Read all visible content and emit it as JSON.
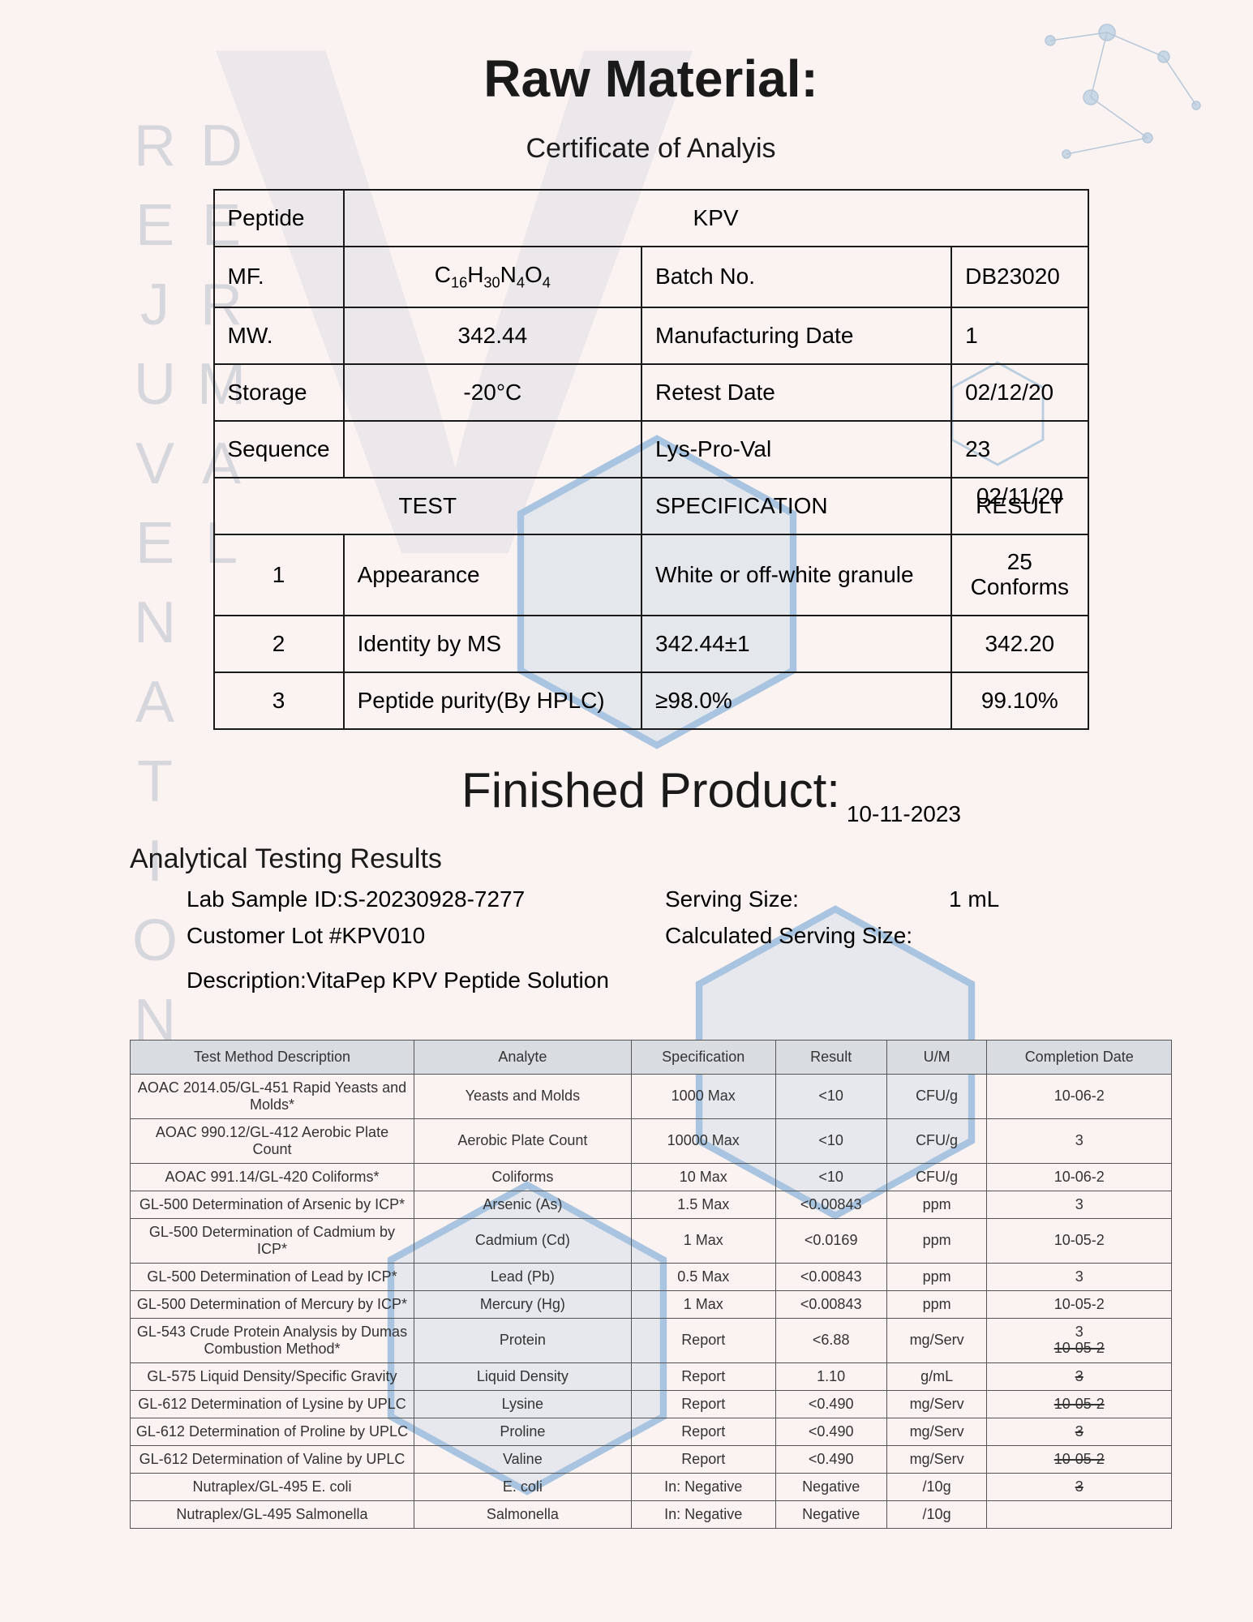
{
  "watermark_vertical": "DERMAL REJUVENATION",
  "header": {
    "title": "Raw Material:",
    "subtitle": "Certificate of Analyis"
  },
  "coa": {
    "rows": {
      "peptide_label": "Peptide",
      "peptide_value": "KPV",
      "mf_label": "MF.",
      "mf_value_html": "C16H30N4O4",
      "batch_label": "Batch No.",
      "batch_value": "DB23020",
      "mw_label": "MW.",
      "mw_value": "342.44",
      "mfg_label": "Manufacturing Date",
      "mfg_value": "1",
      "storage_label": "Storage",
      "storage_value": "-20°C",
      "retest_label": "Retest Date",
      "retest_value": "02/12/20",
      "seq_label": "Sequence",
      "seq_mid": "",
      "seq_val_label": "Lys-Pro-Val",
      "seq_val": "23"
    },
    "header": {
      "test": "TEST",
      "spec": "SPECIFICATION",
      "result_overlap": "02/11/20",
      "result": "RESULT"
    },
    "tests": [
      {
        "n": "1",
        "name": "Appearance",
        "spec": "White or off-white granule",
        "res_top": "25",
        "res": "Conforms"
      },
      {
        "n": "2",
        "name": "Identity by MS",
        "spec": "342.44±1",
        "res_top": "",
        "res": "342.20"
      },
      {
        "n": "3",
        "name": "Peptide purity(By HPLC)",
        "spec": "≥98.0%",
        "res_top": "",
        "res": "99.10%"
      }
    ]
  },
  "finished": {
    "title": "Finished Product:",
    "date": "10-11-2023",
    "atr": "Analytical Testing Results",
    "meta": {
      "lab_id_label": "Lab Sample ID:",
      "lab_id": "S-20230928-7277",
      "cust_lot_label": "Customer Lot #",
      "cust_lot": "KPV010",
      "serving_label": "Serving Size:",
      "serving": "1 mL",
      "calc_label": "Calculated Serving Size:",
      "calc": "",
      "desc_label": "Description:",
      "desc": "VitaPep KPV Peptide Solution"
    }
  },
  "results": {
    "columns": [
      "Test Method Description",
      "Analyte",
      "Specification",
      "Result",
      "U/M",
      "Completion Date"
    ],
    "rows": [
      {
        "m": "AOAC 2014.05/GL-451 Rapid Yeasts and Molds*",
        "a": "Yeasts and Molds",
        "s": "1000 Max",
        "r": "<10",
        "u": "CFU/g",
        "d": "10-06-2"
      },
      {
        "m": "AOAC 990.12/GL-412 Aerobic Plate Count",
        "a": "Aerobic Plate Count",
        "s": "10000 Max",
        "r": "<10",
        "u": "CFU/g",
        "d": "3"
      },
      {
        "m": "AOAC 991.14/GL-420 Coliforms*",
        "a": "Coliforms",
        "s": "10 Max",
        "r": "<10",
        "u": "CFU/g",
        "d": "10-06-2"
      },
      {
        "m": "GL-500 Determination of Arsenic by ICP*",
        "a": "Arsenic (As)",
        "s": "1.5 Max",
        "r": "<0.00843",
        "u": "ppm",
        "d": "3"
      },
      {
        "m": "GL-500 Determination of Cadmium by ICP*",
        "a": "Cadmium (Cd)",
        "s": "1 Max",
        "r": "<0.0169",
        "u": "ppm",
        "d": "10-05-2"
      },
      {
        "m": "GL-500 Determination of Lead by ICP*",
        "a": "Lead (Pb)",
        "s": "0.5 Max",
        "r": "<0.00843",
        "u": "ppm",
        "d": "3"
      },
      {
        "m": "GL-500 Determination of Mercury by ICP*",
        "a": "Mercury (Hg)",
        "s": "1 Max",
        "r": "<0.00843",
        "u": "ppm",
        "d": "10-05-2"
      },
      {
        "m": "GL-543 Crude Protein Analysis by Dumas Combustion Method*",
        "a": "Protein",
        "s": "Report",
        "r": "<6.88",
        "u": "mg/Serv",
        "d": "3",
        "d2": "10-05-2",
        "strike_d2": true
      },
      {
        "m": "GL-575 Liquid Density/Specific Gravity",
        "a": "Liquid Density",
        "s": "Report",
        "r": "1.10",
        "u": "g/mL",
        "d": "3",
        "strike_d": true
      },
      {
        "m": "GL-612 Determination of Lysine by UPLC",
        "a": "Lysine",
        "s": "Report",
        "r": "<0.490",
        "u": "mg/Serv",
        "d": "10-05-2",
        "strike_d": true
      },
      {
        "m": "GL-612 Determination of Proline by UPLC",
        "a": "Proline",
        "s": "Report",
        "r": "<0.490",
        "u": "mg/Serv",
        "d": "3",
        "strike_d": true
      },
      {
        "m": "GL-612 Determination of Valine by UPLC",
        "a": "Valine",
        "s": "Report",
        "r": "<0.490",
        "u": "mg/Serv",
        "d": "10-05-2",
        "strike_d": true
      },
      {
        "m": "Nutraplex/GL-495 E. coli",
        "a": "E. coli",
        "s": "In: Negative",
        "r": "Negative",
        "u": "/10g",
        "d": "3",
        "strike_d": true
      },
      {
        "m": "Nutraplex/GL-495 Salmonella",
        "a": "Salmonella",
        "s": "In: Negative",
        "r": "Negative",
        "u": "/10g",
        "d": ""
      }
    ]
  },
  "styling": {
    "page_bg": "#fbf3f1",
    "border_color": "#1a1a1a",
    "results_header_bg": "#d9dde2",
    "watermark_color": "rgba(120,140,170,0.28)",
    "hex_stroke": "#a8c4e0",
    "hex_fill": "rgba(160,195,225,0.25)"
  }
}
